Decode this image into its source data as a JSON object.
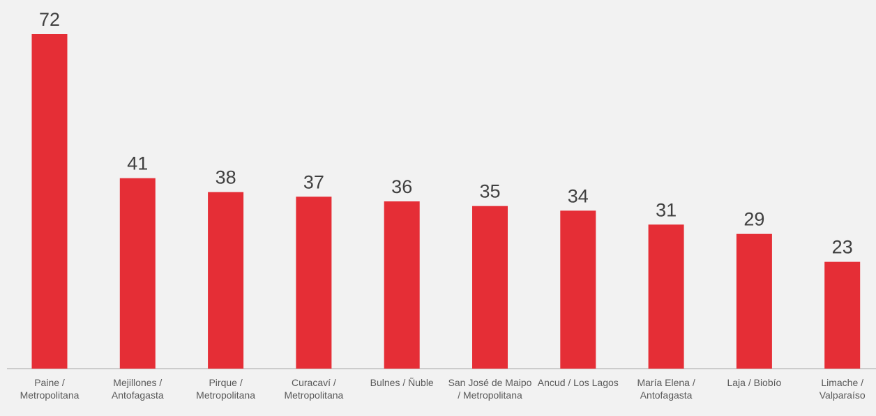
{
  "colors": {
    "bar": "#e52e36",
    "axis": "#bfbfbf",
    "background": "#f2f2f2"
  },
  "chart_data": {
    "type": "bar",
    "title": "",
    "xlabel": "",
    "ylabel": "",
    "grid": false,
    "ylim": [
      0,
      72
    ],
    "categories": [
      "Paine / Metropolitana",
      "Mejillones / Antofagasta",
      "Pirque / Metropolitana",
      "Curacaví / Metropolitana",
      "Bulnes / Ñuble",
      "San José de Maipo / Metropolitana",
      "Ancud / Los Lagos",
      "María Elena / Antofagasta",
      "Laja / Biobío",
      "Limache / Valparaíso"
    ],
    "values": [
      72,
      41,
      38,
      37,
      36,
      35,
      34,
      31,
      29,
      23
    ]
  }
}
